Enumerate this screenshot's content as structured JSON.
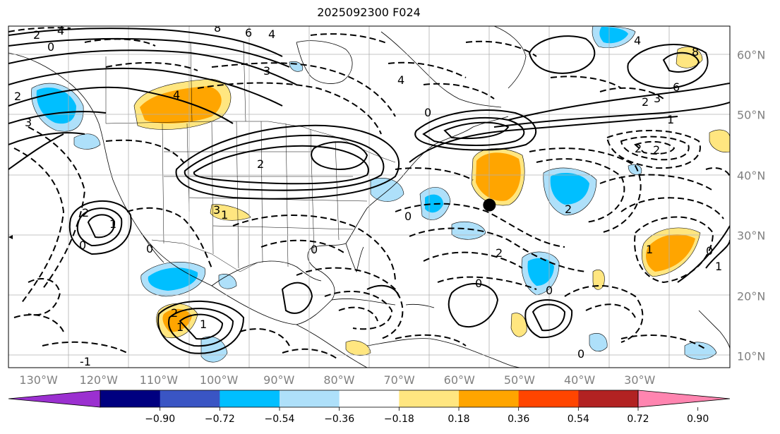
{
  "title": "2025092300 F024",
  "lon_labels": [
    "130°W",
    "120°W",
    "110°W",
    "100°W",
    "90°W",
    "80°W",
    "70°W",
    "60°W",
    "50°W",
    "40°W",
    "30°W"
  ],
  "lat_labels": [
    "60°N",
    "50°N",
    "40°N",
    "30°N",
    "20°N",
    "10°N"
  ],
  "colorbar": {
    "tick_labels": [
      "−0.90",
      "−0.72",
      "−0.54",
      "−0.36",
      "−0.18",
      "0.18",
      "0.36",
      "0.54",
      "0.72",
      "0.90"
    ],
    "colors": [
      "#9b30d0",
      "#000080",
      "#3a55c4",
      "#00bfff",
      "#aee0fa",
      "#ffffff",
      "#ffe680",
      "#ffa500",
      "#ff4500",
      "#b22222",
      "#ff85b0"
    ]
  },
  "marker": {
    "lon": -55,
    "lat": 35
  },
  "contour_labels": [
    {
      "text": "2"
    },
    {
      "text": "0"
    },
    {
      "text": "4"
    },
    {
      "text": "8"
    },
    {
      "text": "6"
    },
    {
      "text": "4"
    },
    {
      "text": "3"
    },
    {
      "text": "4"
    },
    {
      "text": "2"
    },
    {
      "text": "3"
    },
    {
      "text": "4"
    },
    {
      "text": "8"
    },
    {
      "text": "6"
    },
    {
      "text": "3"
    },
    {
      "text": "2"
    },
    {
      "text": "4"
    },
    {
      "text": "2"
    },
    {
      "text": "2"
    },
    {
      "text": "1"
    },
    {
      "text": "2"
    },
    {
      "text": "0"
    },
    {
      "text": "2"
    },
    {
      "text": "3"
    },
    {
      "text": "0"
    },
    {
      "text": "1"
    },
    {
      "text": "2"
    },
    {
      "text": "0"
    },
    {
      "text": "0"
    },
    {
      "text": "2"
    },
    {
      "text": "1"
    },
    {
      "text": "0"
    },
    {
      "text": "0"
    },
    {
      "text": "1"
    },
    {
      "text": "0"
    },
    {
      "text": "2"
    },
    {
      "text": "1"
    },
    {
      "text": "1"
    },
    {
      "text": "0"
    },
    {
      "text": "-1"
    },
    {
      "text": "1"
    },
    {
      "text": "0"
    }
  ]
}
